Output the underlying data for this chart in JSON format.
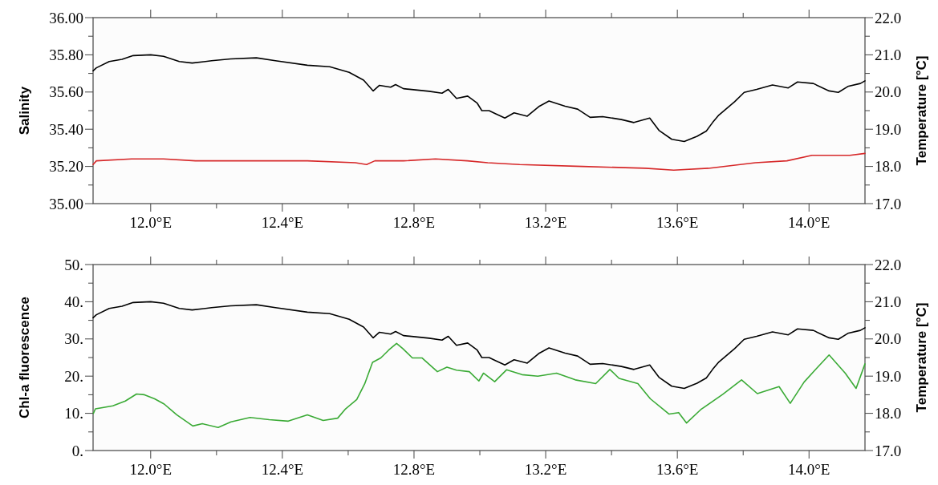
{
  "chart_data": [
    {
      "type": "line",
      "ylabel": "Salinity",
      "y2label": "Temperature [°C]",
      "xlim": [
        11.825,
        14.17
      ],
      "xticks": [
        {
          "value": 12.0,
          "label": "12.0°E"
        },
        {
          "value": 12.2,
          "label": null
        },
        {
          "value": 12.4,
          "label": "12.4°E"
        },
        {
          "value": 12.6,
          "label": null
        },
        {
          "value": 12.8,
          "label": "12.8°E"
        },
        {
          "value": 13.0,
          "label": null
        },
        {
          "value": 13.2,
          "label": "13.2°E"
        },
        {
          "value": 13.4,
          "label": null
        },
        {
          "value": 13.6,
          "label": "13.6°E"
        },
        {
          "value": 13.8,
          "label": null
        },
        {
          "value": 14.0,
          "label": "14.0°E"
        }
      ],
      "ylim": [
        35,
        36
      ],
      "yticks": [
        {
          "value": 35,
          "label": "35.00"
        },
        {
          "value": 35.1,
          "label": null
        },
        {
          "value": 35.2,
          "label": "35.20"
        },
        {
          "value": 35.3,
          "label": null
        },
        {
          "value": 35.4,
          "label": "35.40"
        },
        {
          "value": 35.5,
          "label": null
        },
        {
          "value": 35.6,
          "label": "35.60"
        },
        {
          "value": 35.7,
          "label": null
        },
        {
          "value": 35.8,
          "label": "35.80"
        },
        {
          "value": 35.9,
          "label": null
        },
        {
          "value": 36,
          "label": "36.00"
        }
      ],
      "y2lim": [
        17,
        22
      ],
      "y2ticks": [
        {
          "value": 17,
          "label": "17.0"
        },
        {
          "value": 17.5,
          "label": null
        },
        {
          "value": 18,
          "label": "18.0"
        },
        {
          "value": 18.5,
          "label": null
        },
        {
          "value": 19,
          "label": "19.0"
        },
        {
          "value": 19.5,
          "label": null
        },
        {
          "value": 20,
          "label": "20.0"
        },
        {
          "value": 20.5,
          "label": null
        },
        {
          "value": 21,
          "label": "21.0"
        },
        {
          "value": 21.5,
          "label": null
        },
        {
          "value": 22,
          "label": "22.0"
        }
      ],
      "series": [
        {
          "color": "#000000",
          "axis": "y2",
          "x": [
            11.825,
            11.835,
            11.874,
            11.913,
            11.947,
            12.0,
            12.039,
            12.087,
            12.126,
            12.185,
            12.243,
            12.321,
            12.379,
            12.476,
            12.544,
            12.603,
            12.647,
            12.676,
            12.695,
            12.729,
            12.744,
            12.768,
            12.846,
            12.885,
            12.904,
            12.929,
            12.963,
            12.992,
            13.006,
            13.028,
            13.047,
            13.076,
            13.104,
            13.144,
            13.181,
            13.21,
            13.259,
            13.297,
            13.335,
            13.373,
            13.43,
            13.468,
            13.516,
            13.544,
            13.583,
            13.621,
            13.66,
            13.688,
            13.707,
            13.726,
            13.774,
            13.803,
            13.841,
            13.889,
            13.937,
            13.965,
            14.013,
            14.061,
            14.089,
            14.118,
            14.156,
            14.17
          ],
          "values": [
            20.57,
            20.65,
            20.82,
            20.88,
            20.98,
            21.0,
            20.96,
            20.82,
            20.78,
            20.84,
            20.89,
            20.92,
            20.84,
            20.72,
            20.68,
            20.53,
            20.32,
            20.03,
            20.18,
            20.13,
            20.2,
            20.09,
            20.02,
            19.97,
            20.07,
            19.83,
            19.89,
            19.7,
            19.5,
            19.5,
            19.42,
            19.3,
            19.44,
            19.35,
            19.62,
            19.76,
            19.62,
            19.54,
            19.32,
            19.34,
            19.26,
            19.18,
            19.3,
            18.97,
            18.73,
            18.67,
            18.81,
            18.95,
            19.18,
            19.38,
            19.74,
            19.99,
            20.07,
            20.19,
            20.11,
            20.27,
            20.23,
            20.03,
            19.99,
            20.15,
            20.23,
            20.3
          ]
        },
        {
          "color": "#d62728",
          "axis": "y",
          "x": [
            11.825,
            11.835,
            11.942,
            12.039,
            12.136,
            12.282,
            12.476,
            12.622,
            12.656,
            12.681,
            12.768,
            12.865,
            12.962,
            13.024,
            13.121,
            13.312,
            13.503,
            13.589,
            13.694,
            13.837,
            13.933,
            14.009,
            14.124,
            14.17
          ],
          "values": [
            35.21,
            35.23,
            35.24,
            35.24,
            35.23,
            35.23,
            35.23,
            35.22,
            35.21,
            35.23,
            35.23,
            35.24,
            35.23,
            35.22,
            35.21,
            35.2,
            35.19,
            35.18,
            35.19,
            35.22,
            35.23,
            35.26,
            35.26,
            35.27
          ]
        }
      ]
    },
    {
      "type": "line",
      "ylabel": "Chl-a fluorescence",
      "y2label": "Temperature [°C]",
      "xlim": [
        11.825,
        14.17
      ],
      "xticks": [
        {
          "value": 12.0,
          "label": "12.0°E"
        },
        {
          "value": 12.2,
          "label": null
        },
        {
          "value": 12.4,
          "label": "12.4°E"
        },
        {
          "value": 12.6,
          "label": null
        },
        {
          "value": 12.8,
          "label": "12.8°E"
        },
        {
          "value": 13.0,
          "label": null
        },
        {
          "value": 13.2,
          "label": "13.2°E"
        },
        {
          "value": 13.4,
          "label": null
        },
        {
          "value": 13.6,
          "label": "13.6°E"
        },
        {
          "value": 13.8,
          "label": null
        },
        {
          "value": 14.0,
          "label": "14.0°E"
        }
      ],
      "ylim": [
        0,
        50
      ],
      "yticks": [
        {
          "value": 0,
          "label": "0."
        },
        {
          "value": 5,
          "label": null
        },
        {
          "value": 10,
          "label": "10."
        },
        {
          "value": 15,
          "label": null
        },
        {
          "value": 20,
          "label": "20."
        },
        {
          "value": 25,
          "label": null
        },
        {
          "value": 30,
          "label": "30."
        },
        {
          "value": 35,
          "label": null
        },
        {
          "value": 40,
          "label": "40."
        },
        {
          "value": 45,
          "label": null
        },
        {
          "value": 50,
          "label": "50."
        }
      ],
      "y2lim": [
        17,
        22
      ],
      "y2ticks": [
        {
          "value": 17,
          "label": "17.0"
        },
        {
          "value": 17.5,
          "label": null
        },
        {
          "value": 18,
          "label": "18.0"
        },
        {
          "value": 18.5,
          "label": null
        },
        {
          "value": 19,
          "label": "19.0"
        },
        {
          "value": 19.5,
          "label": null
        },
        {
          "value": 20,
          "label": "20.0"
        },
        {
          "value": 20.5,
          "label": null
        },
        {
          "value": 21,
          "label": "21.0"
        },
        {
          "value": 21.5,
          "label": null
        },
        {
          "value": 22,
          "label": "22.0"
        }
      ],
      "series": [
        {
          "color": "#000000",
          "axis": "y2",
          "x": [
            11.825,
            11.835,
            11.874,
            11.913,
            11.947,
            12.0,
            12.039,
            12.087,
            12.126,
            12.185,
            12.243,
            12.321,
            12.379,
            12.476,
            12.544,
            12.603,
            12.647,
            12.676,
            12.695,
            12.729,
            12.744,
            12.768,
            12.846,
            12.885,
            12.904,
            12.929,
            12.963,
            12.992,
            13.006,
            13.028,
            13.047,
            13.076,
            13.104,
            13.144,
            13.181,
            13.21,
            13.259,
            13.297,
            13.335,
            13.373,
            13.43,
            13.468,
            13.516,
            13.544,
            13.583,
            13.621,
            13.66,
            13.688,
            13.707,
            13.726,
            13.774,
            13.803,
            13.841,
            13.889,
            13.937,
            13.965,
            14.013,
            14.061,
            14.089,
            14.118,
            14.156,
            14.17
          ],
          "values": [
            20.57,
            20.65,
            20.82,
            20.88,
            20.98,
            21.0,
            20.96,
            20.82,
            20.78,
            20.84,
            20.89,
            20.92,
            20.84,
            20.72,
            20.68,
            20.53,
            20.32,
            20.03,
            20.18,
            20.13,
            20.2,
            20.09,
            20.02,
            19.97,
            20.07,
            19.83,
            19.89,
            19.7,
            19.5,
            19.5,
            19.42,
            19.3,
            19.44,
            19.35,
            19.62,
            19.76,
            19.62,
            19.54,
            19.32,
            19.34,
            19.26,
            19.18,
            19.3,
            18.97,
            18.73,
            18.67,
            18.81,
            18.95,
            19.18,
            19.38,
            19.74,
            19.99,
            20.07,
            20.19,
            20.11,
            20.27,
            20.23,
            20.03,
            19.99,
            20.15,
            20.23,
            20.3
          ]
        },
        {
          "color": "#3aaa35",
          "axis": "y",
          "x": [
            11.826,
            11.832,
            11.885,
            11.923,
            11.957,
            11.981,
            12.012,
            12.041,
            12.079,
            12.128,
            12.157,
            12.205,
            12.244,
            12.302,
            12.36,
            12.418,
            12.476,
            12.524,
            12.568,
            12.592,
            12.626,
            12.65,
            12.674,
            12.699,
            12.723,
            12.747,
            12.766,
            12.795,
            12.824,
            12.871,
            12.9,
            12.929,
            12.968,
            12.997,
            13.011,
            13.045,
            13.081,
            13.128,
            13.176,
            13.233,
            13.29,
            13.352,
            13.395,
            13.423,
            13.48,
            13.518,
            13.575,
            13.604,
            13.628,
            13.671,
            13.738,
            13.795,
            13.843,
            13.909,
            13.943,
            13.985,
            14.023,
            14.061,
            14.11,
            14.143,
            14.17
          ],
          "values": [
            10.0,
            11.2,
            12.0,
            13.3,
            15.2,
            15.0,
            13.9,
            12.5,
            9.6,
            6.6,
            7.2,
            6.2,
            7.7,
            8.9,
            8.3,
            7.9,
            9.6,
            8.1,
            8.7,
            11.2,
            13.7,
            17.9,
            23.7,
            24.9,
            27.0,
            28.8,
            27.4,
            24.9,
            24.9,
            21.2,
            22.4,
            21.6,
            21.2,
            18.7,
            20.8,
            18.5,
            21.7,
            20.4,
            20.0,
            20.8,
            19.0,
            18.0,
            21.8,
            19.4,
            18.0,
            13.9,
            9.8,
            10.2,
            7.4,
            11.0,
            15.1,
            19.0,
            15.3,
            17.2,
            12.7,
            18.4,
            22.1,
            25.7,
            20.8,
            16.7,
            23.3
          ]
        }
      ]
    }
  ]
}
